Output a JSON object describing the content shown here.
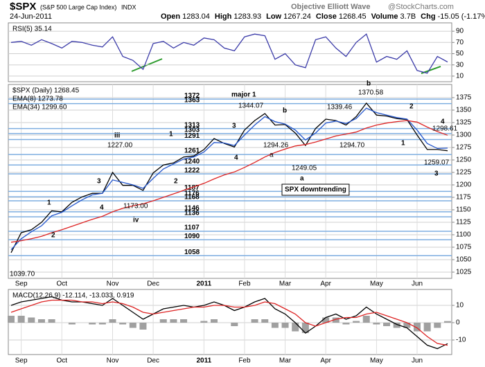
{
  "header": {
    "symbol": "$SPX",
    "name": "(S&P 500 Large Cap Index)",
    "exchange": "INDX",
    "date": "24-Jun-2011",
    "watermark": "Objective Elliott Wave",
    "source": "@StockCharts.com",
    "quote": [
      {
        "label": "Open",
        "value": "1283.04"
      },
      {
        "label": "High",
        "value": "1283.93"
      },
      {
        "label": "Low",
        "value": "1267.24"
      },
      {
        "label": "Close",
        "value": "1268.45"
      },
      {
        "label": "Volume",
        "value": "3.7B"
      },
      {
        "label": "Chg",
        "value": "-15.05 (-1.17%)"
      }
    ]
  },
  "chart_data": [
    {
      "type": "line",
      "ylim": [
        0,
        100
      ],
      "yticks": [
        10,
        30,
        50,
        70,
        90
      ],
      "grid": true,
      "series": [
        {
          "name": "RSI(5) 35.14",
          "color": "#3a3aa8",
          "values": [
            70,
            72,
            65,
            75,
            68,
            60,
            72,
            70,
            65,
            62,
            80,
            45,
            38,
            22,
            68,
            72,
            60,
            70,
            65,
            78,
            75,
            60,
            55,
            80,
            85,
            82,
            40,
            50,
            30,
            25,
            75,
            80,
            60,
            45,
            70,
            85,
            35,
            45,
            40,
            55,
            20,
            15,
            45,
            35.14
          ]
        }
      ]
    },
    {
      "type": "line",
      "ylim": [
        1025,
        1375
      ],
      "yticks": [
        1025,
        1050,
        1075,
        1100,
        1125,
        1150,
        1175,
        1200,
        1225,
        1250,
        1275,
        1300,
        1325,
        1350,
        1375
      ],
      "grid": true,
      "categories": [
        null,
        "Sep",
        null,
        null,
        null,
        "Oct",
        null,
        null,
        null,
        null,
        "Nov",
        null,
        null,
        null,
        "Dec",
        null,
        null,
        null,
        null,
        "2011",
        null,
        null,
        null,
        "Feb",
        null,
        null,
        null,
        "Mar",
        null,
        null,
        null,
        "Apr",
        null,
        null,
        null,
        null,
        "May",
        null,
        null,
        null,
        "Jun",
        null,
        null,
        null
      ],
      "series": [
        {
          "name": "$SPX (Daily) 1268.45",
          "color": "#000000",
          "values": [
            1064,
            1104,
            1110,
            1125,
            1148,
            1146,
            1165,
            1176,
            1183,
            1183,
            1225,
            1199,
            1199,
            1189,
            1224,
            1240,
            1244,
            1256,
            1258,
            1271,
            1293,
            1283,
            1276,
            1310,
            1329,
            1343,
            1320,
            1321,
            1304,
            1279,
            1313,
            1332,
            1329,
            1320,
            1337,
            1364,
            1340,
            1338,
            1333,
            1331,
            1300,
            1271,
            1271,
            1268.45
          ]
        },
        {
          "name": "EMA(8) 1273.78",
          "color": "#2255cc",
          "values": [
            1070,
            1092,
            1106,
            1118,
            1138,
            1145,
            1158,
            1170,
            1180,
            1183,
            1210,
            1205,
            1200,
            1193,
            1213,
            1232,
            1242,
            1252,
            1256,
            1266,
            1285,
            1284,
            1279,
            1300,
            1320,
            1337,
            1327,
            1322,
            1310,
            1290,
            1304,
            1324,
            1328,
            1323,
            1333,
            1354,
            1345,
            1340,
            1335,
            1332,
            1310,
            1283,
            1273,
            1273.78
          ]
        },
        {
          "name": "EMA(34) 1299.60",
          "color": "#dd2222",
          "values": [
            1085,
            1088,
            1092,
            1097,
            1104,
            1110,
            1117,
            1124,
            1131,
            1137,
            1146,
            1153,
            1158,
            1162,
            1168,
            1175,
            1182,
            1189,
            1196,
            1203,
            1212,
            1220,
            1226,
            1235,
            1245,
            1256,
            1265,
            1272,
            1278,
            1281,
            1286,
            1292,
            1298,
            1302,
            1306,
            1314,
            1320,
            1324,
            1327,
            1329,
            1326,
            1316,
            1307,
            1299.6
          ]
        }
      ],
      "levels": [
        1372,
        1363,
        1313,
        1303,
        1291,
        1261,
        1240,
        1222,
        1187,
        1176,
        1168,
        1146,
        1136,
        1107,
        1090,
        1058
      ],
      "annotations": [
        "major 1",
        "1039.70",
        "1",
        "2",
        "3",
        "4",
        "iii",
        "1227.00",
        "1173.00",
        "iv",
        "1",
        "2",
        "3",
        "4",
        "1344.07",
        "b",
        "1294.26",
        "a",
        "1249.05",
        "a",
        "SPX downtrending",
        "1339.46",
        "1294.70",
        "b",
        "1370.58",
        "2",
        "1",
        "4",
        "1298.61",
        "1259.07",
        "3"
      ]
    },
    {
      "type": "line",
      "ylim": [
        -18,
        18
      ],
      "yticks": [
        -10,
        0,
        10
      ],
      "grid": true,
      "categories": [
        null,
        "Sep",
        null,
        null,
        null,
        "Oct",
        null,
        null,
        null,
        null,
        "Nov",
        null,
        null,
        null,
        "Dec",
        null,
        null,
        null,
        null,
        "2011",
        null,
        null,
        null,
        "Feb",
        null,
        null,
        null,
        "Mar",
        null,
        null,
        null,
        "Apr",
        null,
        null,
        null,
        null,
        "May",
        null,
        null,
        null,
        "Jun",
        null,
        null,
        null
      ],
      "series": [
        {
          "name": "MACD(12,26,9) -12.114, -13.033, 0.919",
          "color": "#000000",
          "values": [
            10,
            12,
            13,
            14,
            15,
            13,
            12,
            12,
            11,
            10,
            14,
            10,
            6,
            2,
            5,
            8,
            9,
            10,
            9,
            10,
            12,
            10,
            7,
            9,
            12,
            14,
            8,
            5,
            0,
            -6,
            -2,
            3,
            5,
            2,
            4,
            9,
            5,
            2,
            -1,
            -3,
            -8,
            -13,
            -15,
            -12.114
          ]
        },
        {
          "color": "#dd2222",
          "values": [
            6,
            8,
            10,
            12,
            13,
            13,
            13,
            12,
            12,
            11,
            12,
            11,
            9,
            6,
            5,
            6,
            7,
            8,
            9,
            9,
            10,
            10,
            9,
            9,
            10,
            12,
            11,
            8,
            5,
            0,
            -2,
            0,
            2,
            3,
            3,
            5,
            6,
            4,
            2,
            0,
            -3,
            -8,
            -12,
            -13.033
          ]
        },
        {
          "type": "bar",
          "color": "#a0a0a0",
          "values": [
            4,
            4,
            3,
            2,
            2,
            0,
            -1,
            0,
            -1,
            -1,
            2,
            -1,
            -3,
            -4,
            0,
            2,
            2,
            2,
            0,
            1,
            2,
            0,
            -2,
            0,
            2,
            2,
            -3,
            -3,
            -5,
            -6,
            0,
            3,
            3,
            -1,
            1,
            4,
            -1,
            -2,
            -3,
            -3,
            -5,
            -5,
            -3,
            0.919
          ]
        }
      ]
    }
  ]
}
